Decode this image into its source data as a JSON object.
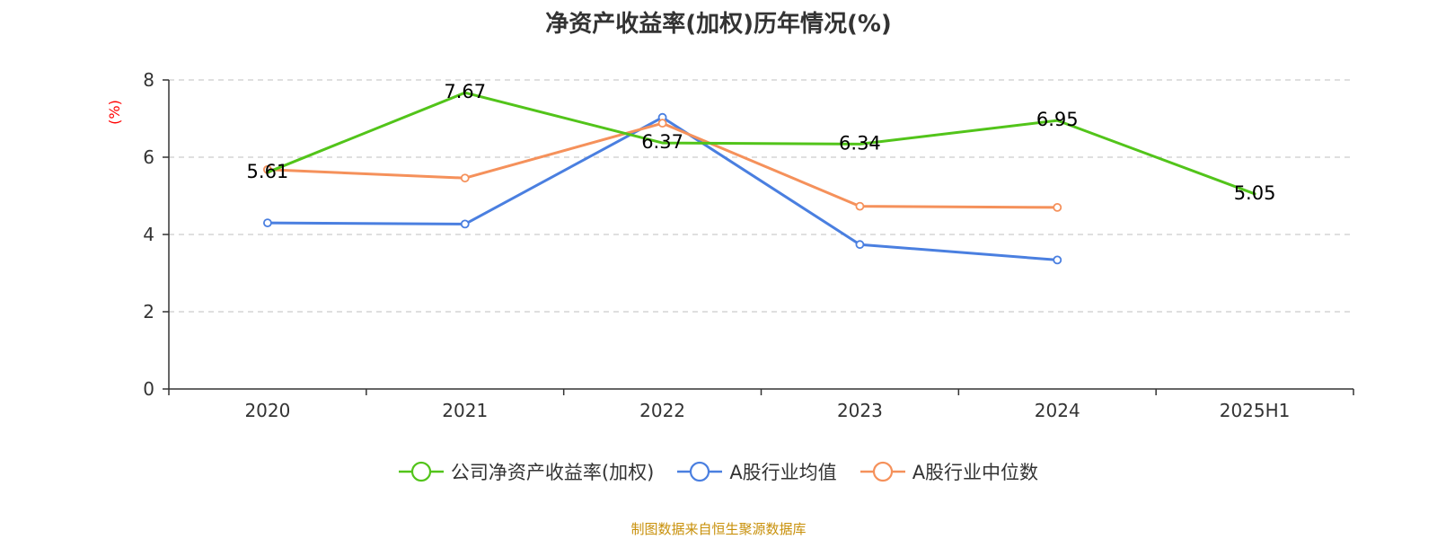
{
  "chart_data": {
    "type": "line",
    "title": "净资产收益率(加权)历年情况(%)",
    "ylabel": "(%)",
    "xlabel": "",
    "categories": [
      "2020",
      "2021",
      "2022",
      "2023",
      "2024",
      "2025H1"
    ],
    "ylim": [
      0,
      8
    ],
    "yticks": [
      0,
      2,
      4,
      6,
      8
    ],
    "grid": true,
    "legend_position": "bottom",
    "series": [
      {
        "name": "公司净资产收益率(加权)",
        "color": "#52c41a",
        "values": [
          5.61,
          7.67,
          6.37,
          6.34,
          6.95,
          5.05
        ],
        "labels": [
          "5.61",
          "7.67",
          "6.37",
          "6.34",
          "6.95",
          "5.05"
        ]
      },
      {
        "name": "A股行业均值",
        "color": "#4a7fe0",
        "values": [
          4.3,
          4.27,
          7.03,
          3.74,
          3.34,
          null
        ]
      },
      {
        "name": "A股行业中位数",
        "color": "#f5915b",
        "values": [
          5.68,
          5.46,
          6.88,
          4.73,
          4.7,
          null
        ]
      }
    ]
  },
  "source_note": "制图数据来自恒生聚源数据库",
  "colors": {
    "axis": "#333333",
    "grid": "#cccccc",
    "ylabel": "#ff0000",
    "source": "#c8900a"
  }
}
